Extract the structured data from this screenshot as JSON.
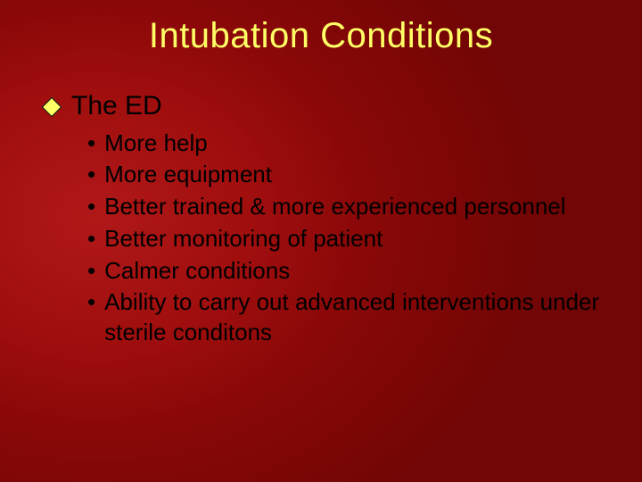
{
  "colors": {
    "title": "#ffff66",
    "body_text": "#000000",
    "diamond_fill": "#ffff66",
    "diamond_border": "#000000",
    "bullet": "#000000"
  },
  "typography": {
    "title_fontsize": 40,
    "level1_fontsize": 30,
    "level2_fontsize": 26,
    "font_family": "Verdana"
  },
  "title": "Intubation Conditions",
  "level1": {
    "text": "The ED"
  },
  "sub_bullets": [
    "More help",
    "More equipment",
    "Better trained & more experienced personnel",
    "Better monitoring of patient",
    "Calmer conditions",
    "Ability to carry out advanced interventions under sterile conditons"
  ]
}
